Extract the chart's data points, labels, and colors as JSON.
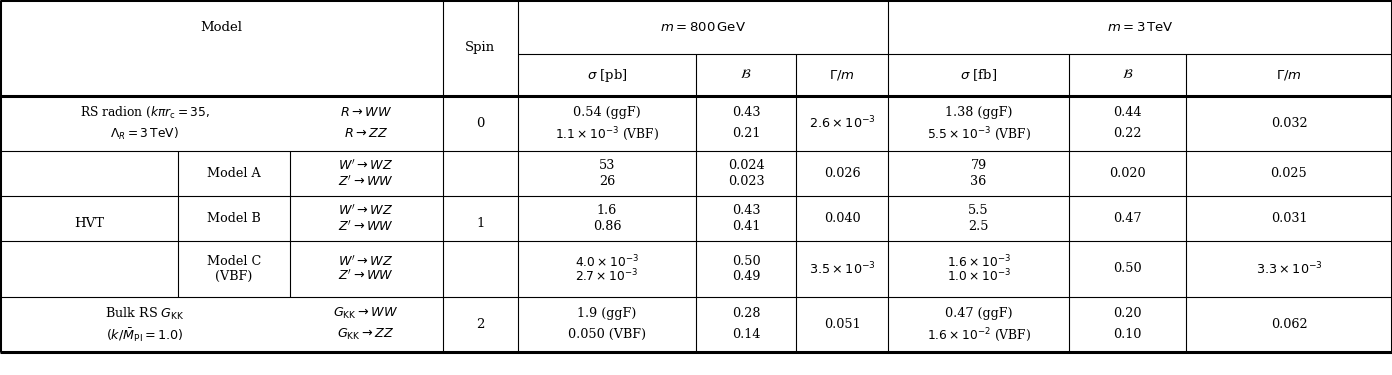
{
  "ce": [
    0.0,
    0.128,
    0.208,
    0.318,
    0.372,
    0.5,
    0.572,
    0.638,
    0.768,
    0.852,
    1.0
  ],
  "rh": [
    0.145,
    0.11,
    0.148,
    0.12,
    0.12,
    0.148,
    0.148
  ],
  "lw_outer": 2.2,
  "lw_inner": 0.8,
  "fs_main": 9.5,
  "fs_data": 9.2,
  "fs_small": 8.8,
  "rows": {
    "rs_model_line1": "RS radion ($k\\pi r_{\\rm c} = 35,$",
    "rs_model_line2": "$\\Lambda_R = 3\\,{\\rm TeV})$",
    "rs_decay1": "$R \\rightarrow WW$",
    "rs_decay2": "$R \\rightarrow ZZ$",
    "rs_spin": "0",
    "rs_sigma800_1": "0.54 (ggF)",
    "rs_sigma800_2": "$1.1\\times10^{-3}$ (VBF)",
    "rs_B800_1": "0.43",
    "rs_B800_2": "0.21",
    "rs_Gm800": "$2.6\\times10^{-3}$",
    "rs_sigma3T_1": "1.38 (ggF)",
    "rs_sigma3T_2": "$5.5\\times10^{-3}$ (VBF)",
    "rs_B3T_1": "0.44",
    "rs_B3T_2": "0.22",
    "rs_Gm3T": "0.032",
    "hvtA_submodel": "Model A",
    "hvtA_decay1": "$W' \\rightarrow WZ$",
    "hvtA_decay2": "$Z' \\rightarrow WW$",
    "hvtA_sigma800_1": "53",
    "hvtA_sigma800_2": "26",
    "hvtA_B800_1": "0.024",
    "hvtA_B800_2": "0.023",
    "hvtA_Gm800": "0.026",
    "hvtA_sigma3T_1": "79",
    "hvtA_sigma3T_2": "36",
    "hvtA_B3T": "0.020",
    "hvtA_Gm3T": "0.025",
    "hvtB_submodel": "Model B",
    "hvtB_decay1": "$W' \\rightarrow WZ$",
    "hvtB_decay2": "$Z' \\rightarrow WW$",
    "hvtB_sigma800_1": "1.6",
    "hvtB_sigma800_2": "0.86",
    "hvtB_B800_1": "0.43",
    "hvtB_B800_2": "0.41",
    "hvtB_Gm800": "0.040",
    "hvtB_sigma3T_1": "5.5",
    "hvtB_sigma3T_2": "2.5",
    "hvtB_B3T": "0.47",
    "hvtB_Gm3T": "0.031",
    "hvtC_submodel1": "Model C",
    "hvtC_submodel2": "(VBF)",
    "hvtC_decay1": "$W' \\rightarrow WZ$",
    "hvtC_decay2": "$Z' \\rightarrow WW$",
    "hvtC_sigma800_1": "$4.0\\times10^{-3}$",
    "hvtC_sigma800_2": "$2.7\\times10^{-3}$",
    "hvtC_B800_1": "0.50",
    "hvtC_B800_2": "0.49",
    "hvtC_Gm800": "$3.5\\times10^{-3}$",
    "hvtC_sigma3T_1": "$1.6\\times10^{-3}$",
    "hvtC_sigma3T_2": "$1.0\\times10^{-3}$",
    "hvtC_B3T": "0.50",
    "hvtC_Gm3T": "$3.3\\times10^{-3}$",
    "brs_model_line1": "Bulk RS $G_{\\rm KK}$",
    "brs_model_line2": "$(k/\\bar{M}_{\\rm Pl} = 1.0)$",
    "brs_decay1": "$G_{\\rm KK} \\rightarrow WW$",
    "brs_decay2": "$G_{\\rm KK} \\rightarrow ZZ$",
    "brs_spin": "2",
    "brs_sigma800_1": "1.9 (ggF)",
    "brs_sigma800_2": "0.050 (VBF)",
    "brs_B800_1": "0.28",
    "brs_B800_2": "0.14",
    "brs_Gm800": "0.051",
    "brs_sigma3T_1": "0.47 (ggF)",
    "brs_sigma3T_2": "$1.6\\times10^{-2}$ (VBF)",
    "brs_B3T_1": "0.20",
    "brs_B3T_2": "0.10",
    "brs_Gm3T": "0.062"
  }
}
